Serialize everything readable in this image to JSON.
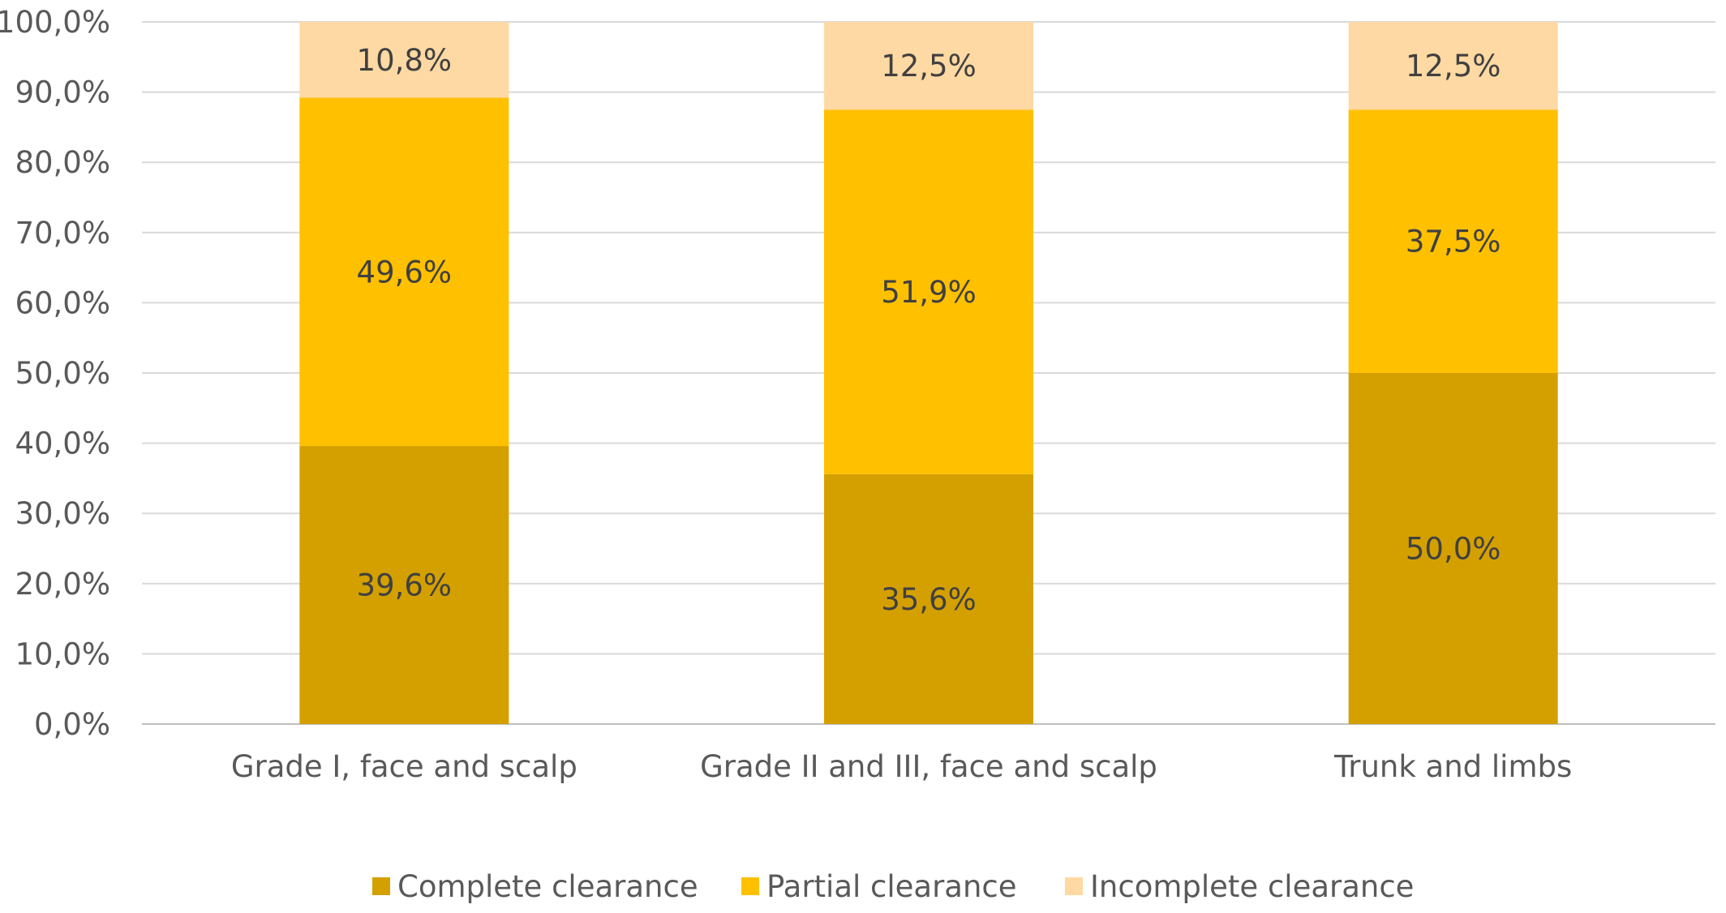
{
  "chart_data": {
    "type": "bar",
    "stacked": true,
    "categories": [
      "Grade I, face and scalp",
      "Grade II and III, face and scalp",
      "Trunk and limbs"
    ],
    "series": [
      {
        "name": "Complete clearance",
        "values": [
          39.6,
          35.6,
          50.0
        ],
        "labels": [
          "39,6%",
          "35,6%",
          "50,0%"
        ],
        "color": "#D4A000"
      },
      {
        "name": "Partial clearance",
        "values": [
          49.6,
          51.9,
          37.5
        ],
        "labels": [
          "49,6%",
          "51,9%",
          "37,5%"
        ],
        "color": "#FFC000"
      },
      {
        "name": "Incomplete clearance",
        "values": [
          10.8,
          12.5,
          12.5
        ],
        "labels": [
          "10,8%",
          "12,5%",
          "12,5%"
        ],
        "color": "#FFD9A3"
      }
    ],
    "ylim": [
      0,
      100
    ],
    "yticks": [
      0,
      10,
      20,
      30,
      40,
      50,
      60,
      70,
      80,
      90,
      100
    ],
    "ytick_labels": [
      "0,0%",
      "10,0%",
      "20,0%",
      "30,0%",
      "40,0%",
      "50,0%",
      "60,0%",
      "70,0%",
      "80,0%",
      "90,0%",
      "100,0%"
    ],
    "grid": true,
    "legend_position": "bottom",
    "title": "",
    "xlabel": "",
    "ylabel": ""
  }
}
